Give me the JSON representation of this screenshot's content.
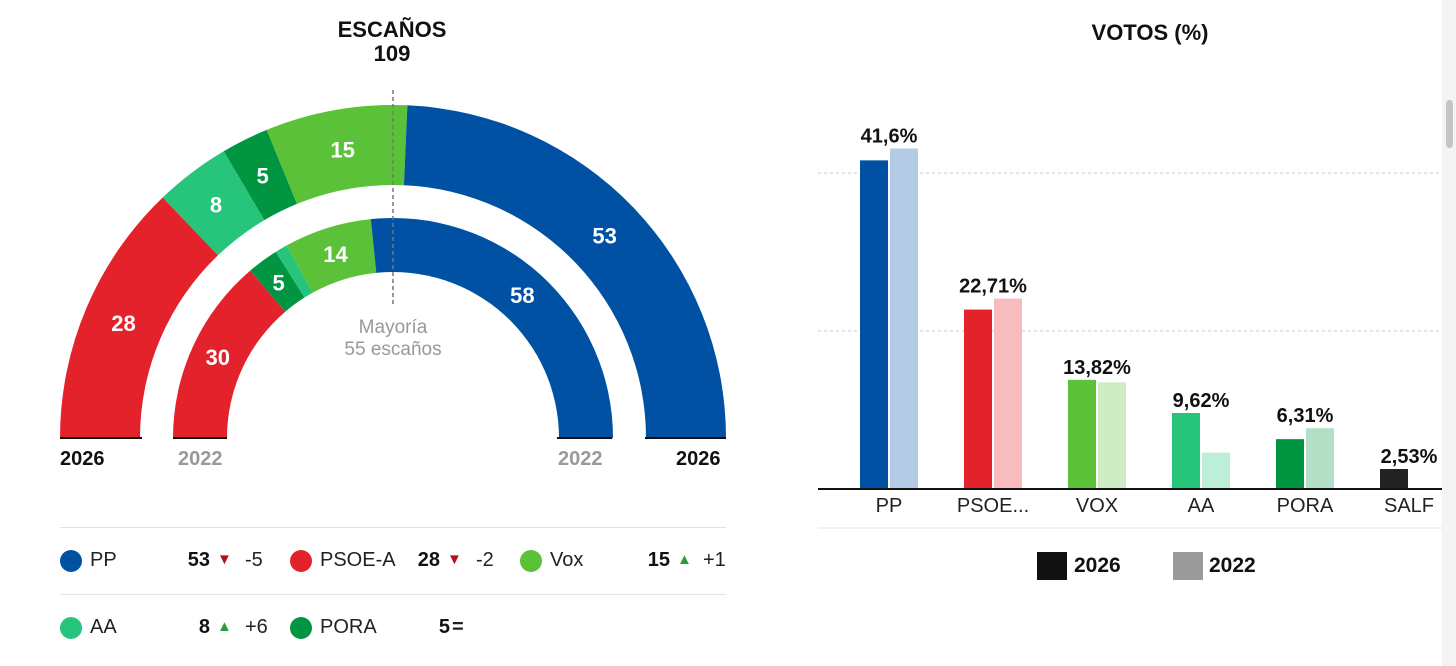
{
  "seats_title": "ESCAÑOS",
  "seats_total": "109",
  "majority_line1": "Mayoría",
  "majority_line2": "55 escaños",
  "votes_title": "VOTOS (%)",
  "chart_data": [
    {
      "type": "pie",
      "title": "ESCAÑOS 109",
      "rings": [
        {
          "year_label": "2026",
          "total": 109,
          "segments": [
            {
              "party": "PSOE-A",
              "seats": 28,
              "color": "#e4222b"
            },
            {
              "party": "AA",
              "seats": 8,
              "color": "#27c47c"
            },
            {
              "party": "PORA",
              "seats": 5,
              "color": "#009641"
            },
            {
              "party": "Vox",
              "seats": 15,
              "color": "#5ac138"
            },
            {
              "party": "PP",
              "seats": 53,
              "color": "#0051a3"
            }
          ]
        },
        {
          "year_label": "2022",
          "total": 109,
          "segments": [
            {
              "party": "PSOE-A",
              "seats": 30,
              "color": "#e4222b"
            },
            {
              "party": "PORA",
              "seats": 5,
              "color": "#009641"
            },
            {
              "party": "AA",
              "seats": 2,
              "color": "#27c47c"
            },
            {
              "party": "Vox",
              "seats": 14,
              "color": "#5ac138"
            },
            {
              "party": "PP",
              "seats": 58,
              "color": "#0051a3"
            }
          ]
        }
      ],
      "majority": 55
    },
    {
      "type": "bar",
      "title": "VOTOS (%)",
      "categories": [
        "PP",
        "PSOE...",
        "VOX",
        "AA",
        "PORA",
        "SALF"
      ],
      "series": [
        {
          "name": "2026",
          "values": [
            41.6,
            22.71,
            13.82,
            9.62,
            6.31,
            2.53
          ],
          "labels": [
            "41,6%",
            "22,71%",
            "13,82%",
            "9,62%",
            "6,31%",
            "2,53%"
          ],
          "colors": [
            "#0051a3",
            "#e4222b",
            "#5ac138",
            "#27c47c",
            "#009641",
            "#222222"
          ]
        },
        {
          "name": "2022",
          "values": [
            43.1,
            24.1,
            13.5,
            4.6,
            7.7,
            0
          ],
          "colors": [
            "#b3cbe5",
            "#f8bcbf",
            "#cdecc3",
            "#bdeed8",
            "#b3dfc6",
            "#dddddd"
          ]
        }
      ],
      "ylim": [
        0,
        45
      ],
      "gridlines": [
        20,
        40
      ],
      "legend": [
        {
          "label": "2026",
          "color": "#111111"
        },
        {
          "label": "2022",
          "color": "#9a9a9a"
        }
      ]
    }
  ],
  "legend_rows": [
    [
      {
        "name": "PP",
        "seats": "53",
        "arrow": "▼",
        "diff": "-5",
        "color": "#0051a3",
        "trend": "down"
      },
      {
        "name": "PSOE-A",
        "seats": "28",
        "arrow": "▼",
        "diff": "-2",
        "color": "#e4222b",
        "trend": "down"
      },
      {
        "name": "Vox",
        "seats": "15",
        "arrow": "▲",
        "diff": "+1",
        "color": "#5ac138",
        "trend": "up"
      }
    ],
    [
      {
        "name": "AA",
        "seats": "8",
        "arrow": "▲",
        "diff": "+6",
        "color": "#27c47c",
        "trend": "up"
      },
      {
        "name": "PORA",
        "seats": "5",
        "arrow": "",
        "diff": "=",
        "color": "#009641",
        "trend": "same"
      }
    ]
  ]
}
